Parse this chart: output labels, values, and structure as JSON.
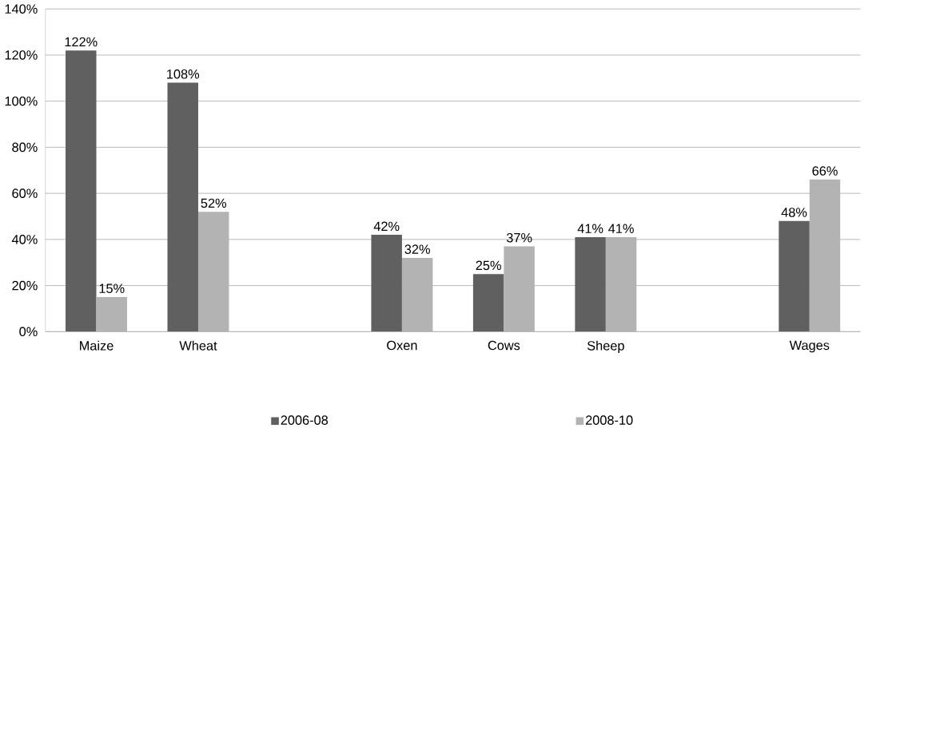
{
  "chart_data": {
    "type": "bar",
    "categories": [
      "Maize",
      "Wheat",
      null,
      "Oxen",
      "Cows",
      "Sheep",
      null,
      "Wages"
    ],
    "series": [
      {
        "name": "2006-08",
        "color": "#606060",
        "values": [
          122,
          108,
          null,
          42,
          25,
          41,
          null,
          48
        ],
        "value_labels": [
          "122%",
          "108%",
          null,
          "42%",
          "25%",
          "41%",
          null,
          "48%"
        ]
      },
      {
        "name": "2008-10",
        "color": "#b3b3b3",
        "values": [
          15,
          52,
          null,
          32,
          37,
          41,
          null,
          66
        ],
        "value_labels": [
          "15%",
          "52%",
          null,
          "32%",
          "37%",
          "41%",
          null,
          "66%"
        ]
      }
    ],
    "ylim": [
      0,
      140
    ],
    "yticks": [
      {
        "value": 0,
        "label": "0%"
      },
      {
        "value": 20,
        "label": "20%"
      },
      {
        "value": 40,
        "label": "40%"
      },
      {
        "value": 60,
        "label": "60%"
      },
      {
        "value": 80,
        "label": "80%"
      },
      {
        "value": 100,
        "label": "100%"
      },
      {
        "value": 120,
        "label": "120%"
      },
      {
        "value": 140,
        "label": "140%"
      }
    ],
    "grid": "y",
    "legend": "bottom"
  }
}
